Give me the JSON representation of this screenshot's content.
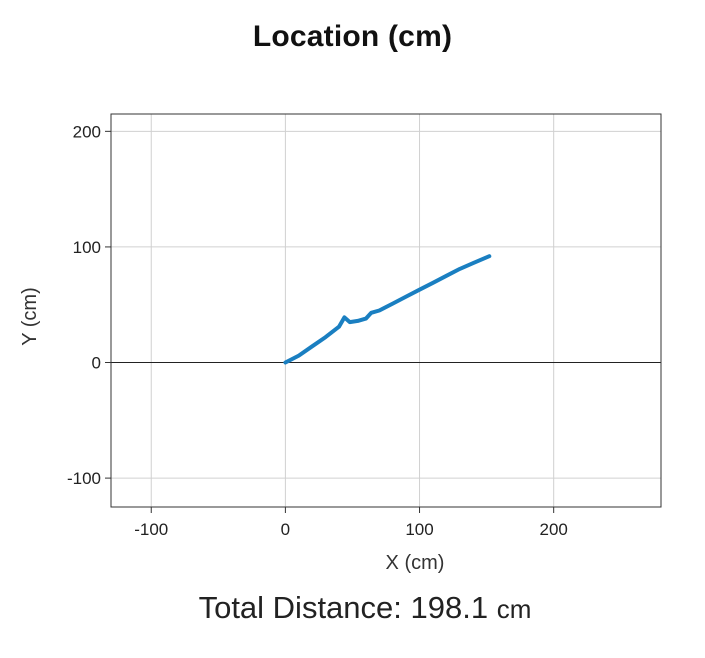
{
  "title": "Location (cm)",
  "chart_data": {
    "type": "line",
    "title": "Location (cm)",
    "xlabel": "X (cm)",
    "ylabel": "Y (cm)",
    "xlim": [
      -130,
      280
    ],
    "ylim": [
      -125,
      215
    ],
    "xticks": [
      -100,
      0,
      100,
      200
    ],
    "yticks": [
      -100,
      0,
      100,
      200
    ],
    "xtick_labels": [
      "-100",
      "0",
      "100",
      "200"
    ],
    "ytick_labels": [
      "-100",
      "0",
      "100",
      "200"
    ],
    "grid": true,
    "zero_line": true,
    "line_color": "#1a7fc1",
    "series": [
      {
        "x": [
          0,
          10,
          20,
          30,
          40,
          44,
          48,
          54,
          60,
          64,
          70,
          80,
          90,
          100,
          110,
          120,
          130,
          140,
          152
        ],
        "y": [
          0,
          6,
          14,
          22,
          31,
          39,
          35,
          36,
          38,
          43,
          45,
          51,
          57,
          63,
          69,
          75,
          81,
          86,
          92
        ]
      }
    ]
  },
  "total": {
    "label": "Total Distance:",
    "value": "198.1",
    "unit": "cm"
  }
}
